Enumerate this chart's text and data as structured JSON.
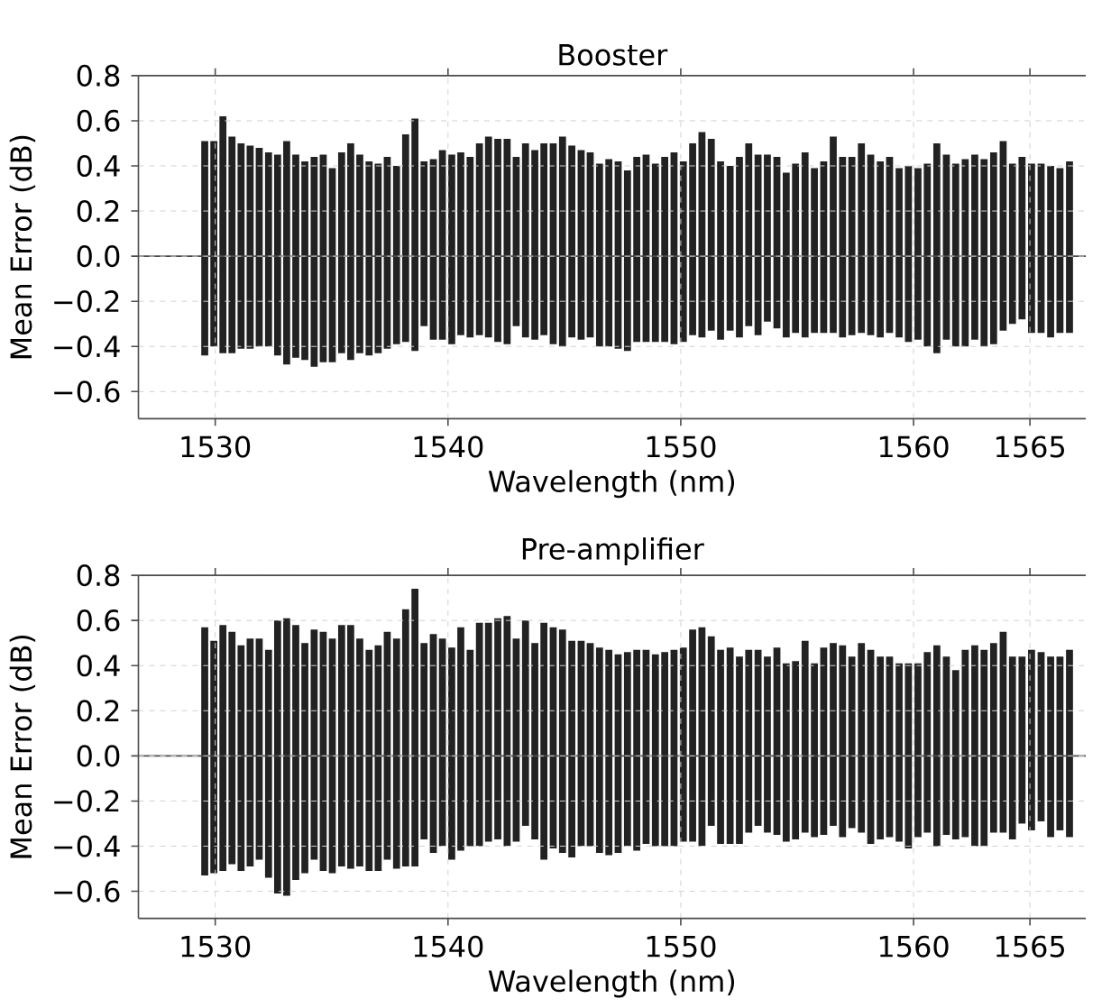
{
  "chart_data": [
    {
      "type": "bar",
      "title": "Booster",
      "xlabel": "Wavelength (nm)",
      "ylabel": "Mean Error (dB)",
      "x": [
        1529.55,
        1529.94,
        1530.33,
        1530.72,
        1531.11,
        1531.5,
        1531.89,
        1532.29,
        1532.68,
        1533.07,
        1533.46,
        1533.85,
        1534.25,
        1534.64,
        1535.03,
        1535.43,
        1535.82,
        1536.21,
        1536.61,
        1537.0,
        1537.39,
        1537.79,
        1538.18,
        1538.58,
        1538.97,
        1539.37,
        1539.76,
        1540.16,
        1540.55,
        1540.95,
        1541.35,
        1541.74,
        1542.14,
        1542.54,
        1542.93,
        1543.33,
        1543.73,
        1544.12,
        1544.52,
        1544.92,
        1545.32,
        1545.72,
        1546.11,
        1546.51,
        1546.91,
        1547.31,
        1547.71,
        1548.11,
        1548.51,
        1548.91,
        1549.31,
        1549.71,
        1550.11,
        1550.51,
        1550.91,
        1551.31,
        1551.71,
        1552.12,
        1552.52,
        1552.92,
        1553.32,
        1553.72,
        1554.13,
        1554.53,
        1554.93,
        1555.34,
        1555.74,
        1556.14,
        1556.55,
        1556.95,
        1557.35,
        1557.76,
        1558.16,
        1558.57,
        1558.97,
        1559.38,
        1559.78,
        1560.19,
        1560.59,
        1561.0,
        1561.41,
        1561.81,
        1562.22,
        1562.63,
        1563.03,
        1563.44,
        1563.85,
        1564.25,
        1564.66,
        1565.07,
        1565.48,
        1565.89,
        1566.29,
        1566.7
      ],
      "series": [
        {
          "color": "#222222",
          "values": [
            0.51,
            0.51,
            0.62,
            0.53,
            0.5,
            0.49,
            0.48,
            0.46,
            0.45,
            0.51,
            0.45,
            0.42,
            0.44,
            0.45,
            0.39,
            0.46,
            0.5,
            0.45,
            0.42,
            0.41,
            0.44,
            0.4,
            0.54,
            0.61,
            0.42,
            0.43,
            0.47,
            0.45,
            0.46,
            0.44,
            0.5,
            0.53,
            0.52,
            0.52,
            0.44,
            0.5,
            0.47,
            0.5,
            0.5,
            0.53,
            0.49,
            0.47,
            0.46,
            0.41,
            0.43,
            0.42,
            0.38,
            0.44,
            0.45,
            0.41,
            0.44,
            0.46,
            0.42,
            0.5,
            0.55,
            0.52,
            0.42,
            0.4,
            0.44,
            0.5,
            0.45,
            0.45,
            0.44,
            0.37,
            0.41,
            0.46,
            0.39,
            0.42,
            0.53,
            0.44,
            0.44,
            0.5,
            0.45,
            0.42,
            0.44,
            0.39,
            0.4,
            0.39,
            0.41,
            0.5,
            0.45,
            0.41,
            0.43,
            0.45,
            0.43,
            0.46,
            0.51,
            0.41,
            0.44,
            0.41,
            0.41,
            0.4,
            0.39,
            0.42
          ]
        },
        {
          "color": "#222222",
          "values": [
            -0.44,
            -0.4,
            -0.43,
            -0.43,
            -0.41,
            -0.41,
            -0.4,
            -0.4,
            -0.44,
            -0.48,
            -0.45,
            -0.46,
            -0.49,
            -0.47,
            -0.47,
            -0.43,
            -0.46,
            -0.43,
            -0.44,
            -0.43,
            -0.41,
            -0.39,
            -0.38,
            -0.42,
            -0.31,
            -0.37,
            -0.37,
            -0.39,
            -0.35,
            -0.36,
            -0.35,
            -0.36,
            -0.38,
            -0.39,
            -0.31,
            -0.36,
            -0.37,
            -0.35,
            -0.39,
            -0.4,
            -0.36,
            -0.37,
            -0.36,
            -0.4,
            -0.4,
            -0.41,
            -0.42,
            -0.38,
            -0.38,
            -0.38,
            -0.38,
            -0.39,
            -0.38,
            -0.35,
            -0.36,
            -0.33,
            -0.37,
            -0.33,
            -0.36,
            -0.31,
            -0.35,
            -0.29,
            -0.32,
            -0.36,
            -0.34,
            -0.36,
            -0.34,
            -0.34,
            -0.34,
            -0.36,
            -0.35,
            -0.34,
            -0.35,
            -0.36,
            -0.34,
            -0.36,
            -0.38,
            -0.37,
            -0.4,
            -0.43,
            -0.37,
            -0.4,
            -0.4,
            -0.37,
            -0.4,
            -0.39,
            -0.33,
            -0.3,
            -0.28,
            -0.34,
            -0.34,
            -0.36,
            -0.34,
            -0.34
          ]
        }
      ],
      "xlim": [
        1526.7,
        1567.4
      ],
      "ylim": [
        -0.72,
        0.8
      ],
      "xticks": [
        1530,
        1540,
        1550,
        1560,
        1565
      ],
      "yticks": [
        {
          "value": -0.6,
          "label": "−0.6"
        },
        {
          "value": -0.4,
          "label": "−0.4"
        },
        {
          "value": -0.2,
          "label": "−0.2"
        },
        {
          "value": 0,
          "label": "0.0"
        },
        0.2,
        0.4,
        0.6,
        0.8
      ],
      "grid": true,
      "stacked": true,
      "ref_lines": [
        {
          "axis": "y",
          "value": 0
        }
      ]
    },
    {
      "type": "bar",
      "title": "Pre-amplifier",
      "xlabel": "Wavelength (nm)",
      "ylabel": "Mean Error (dB)",
      "x": [
        1529.55,
        1529.94,
        1530.33,
        1530.72,
        1531.11,
        1531.5,
        1531.89,
        1532.29,
        1532.68,
        1533.07,
        1533.46,
        1533.85,
        1534.25,
        1534.64,
        1535.03,
        1535.43,
        1535.82,
        1536.21,
        1536.61,
        1537.0,
        1537.39,
        1537.79,
        1538.18,
        1538.58,
        1538.97,
        1539.37,
        1539.76,
        1540.16,
        1540.55,
        1540.95,
        1541.35,
        1541.74,
        1542.14,
        1542.54,
        1542.93,
        1543.33,
        1543.73,
        1544.12,
        1544.52,
        1544.92,
        1545.32,
        1545.72,
        1546.11,
        1546.51,
        1546.91,
        1547.31,
        1547.71,
        1548.11,
        1548.51,
        1548.91,
        1549.31,
        1549.71,
        1550.11,
        1550.51,
        1550.91,
        1551.31,
        1551.71,
        1552.12,
        1552.52,
        1552.92,
        1553.32,
        1553.72,
        1554.13,
        1554.53,
        1554.93,
        1555.34,
        1555.74,
        1556.14,
        1556.55,
        1556.95,
        1557.35,
        1557.76,
        1558.16,
        1558.57,
        1558.97,
        1559.38,
        1559.78,
        1560.19,
        1560.59,
        1561.0,
        1561.41,
        1561.81,
        1562.22,
        1562.63,
        1563.03,
        1563.44,
        1563.85,
        1564.25,
        1564.66,
        1565.07,
        1565.48,
        1565.89,
        1566.29,
        1566.7
      ],
      "series": [
        {
          "color": "#222222",
          "values": [
            0.57,
            0.51,
            0.58,
            0.55,
            0.49,
            0.52,
            0.52,
            0.47,
            0.6,
            0.61,
            0.58,
            0.5,
            0.56,
            0.55,
            0.52,
            0.58,
            0.58,
            0.52,
            0.47,
            0.49,
            0.55,
            0.52,
            0.65,
            0.74,
            0.5,
            0.54,
            0.52,
            0.48,
            0.57,
            0.47,
            0.59,
            0.59,
            0.61,
            0.62,
            0.52,
            0.6,
            0.5,
            0.59,
            0.57,
            0.56,
            0.51,
            0.51,
            0.5,
            0.48,
            0.47,
            0.45,
            0.46,
            0.47,
            0.47,
            0.45,
            0.46,
            0.47,
            0.48,
            0.56,
            0.57,
            0.53,
            0.47,
            0.48,
            0.44,
            0.47,
            0.47,
            0.44,
            0.48,
            0.41,
            0.42,
            0.51,
            0.41,
            0.48,
            0.5,
            0.49,
            0.44,
            0.5,
            0.47,
            0.44,
            0.44,
            0.41,
            0.41,
            0.41,
            0.46,
            0.49,
            0.44,
            0.38,
            0.47,
            0.49,
            0.47,
            0.5,
            0.55,
            0.44,
            0.44,
            0.47,
            0.46,
            0.44,
            0.44,
            0.47
          ]
        },
        {
          "color": "#222222",
          "values": [
            -0.53,
            -0.52,
            -0.51,
            -0.48,
            -0.51,
            -0.49,
            -0.46,
            -0.54,
            -0.61,
            -0.62,
            -0.55,
            -0.52,
            -0.46,
            -0.51,
            -0.52,
            -0.49,
            -0.5,
            -0.49,
            -0.51,
            -0.51,
            -0.46,
            -0.5,
            -0.49,
            -0.49,
            -0.37,
            -0.43,
            -0.4,
            -0.46,
            -0.42,
            -0.4,
            -0.4,
            -0.38,
            -0.37,
            -0.4,
            -0.38,
            -0.31,
            -0.37,
            -0.46,
            -0.41,
            -0.43,
            -0.45,
            -0.4,
            -0.4,
            -0.43,
            -0.44,
            -0.43,
            -0.4,
            -0.42,
            -0.39,
            -0.4,
            -0.4,
            -0.4,
            -0.38,
            -0.38,
            -0.4,
            -0.31,
            -0.39,
            -0.39,
            -0.39,
            -0.34,
            -0.31,
            -0.34,
            -0.35,
            -0.38,
            -0.37,
            -0.34,
            -0.36,
            -0.35,
            -0.31,
            -0.36,
            -0.32,
            -0.34,
            -0.39,
            -0.37,
            -0.36,
            -0.38,
            -0.41,
            -0.36,
            -0.34,
            -0.4,
            -0.35,
            -0.37,
            -0.36,
            -0.4,
            -0.4,
            -0.34,
            -0.34,
            -0.37,
            -0.3,
            -0.33,
            -0.29,
            -0.36,
            -0.33,
            -0.36
          ]
        }
      ],
      "xlim": [
        1526.7,
        1567.4
      ],
      "ylim": [
        -0.72,
        0.8
      ],
      "xticks": [
        1530,
        1540,
        1550,
        1560,
        1565
      ],
      "yticks": [
        {
          "value": -0.6,
          "label": "−0.6"
        },
        {
          "value": -0.4,
          "label": "−0.4"
        },
        {
          "value": -0.2,
          "label": "−0.2"
        },
        {
          "value": 0,
          "label": "0.0"
        },
        0.2,
        0.4,
        0.6,
        0.8
      ],
      "grid": true,
      "stacked": true,
      "ref_lines": [
        {
          "axis": "y",
          "value": 0
        }
      ]
    }
  ]
}
